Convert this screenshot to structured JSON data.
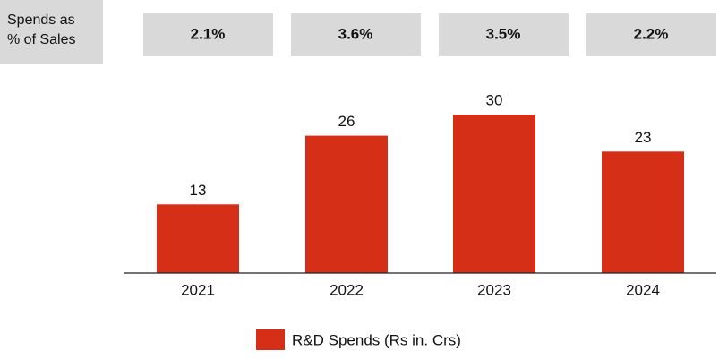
{
  "chart_data": {
    "type": "bar",
    "top_row": {
      "label": "Spends as % of Sales",
      "values": [
        2.1,
        3.6,
        3.5,
        2.2
      ],
      "value_labels": [
        "2.1%",
        "3.6%",
        "3.5%",
        "2.2%"
      ]
    },
    "categories": [
      "2021",
      "2022",
      "2023",
      "2024"
    ],
    "series": [
      {
        "name": "R&D Spends (Rs in. Crs)",
        "color": "#d62f18",
        "values": [
          13,
          26,
          30,
          23
        ]
      }
    ],
    "ylim": [
      0,
      30
    ]
  }
}
